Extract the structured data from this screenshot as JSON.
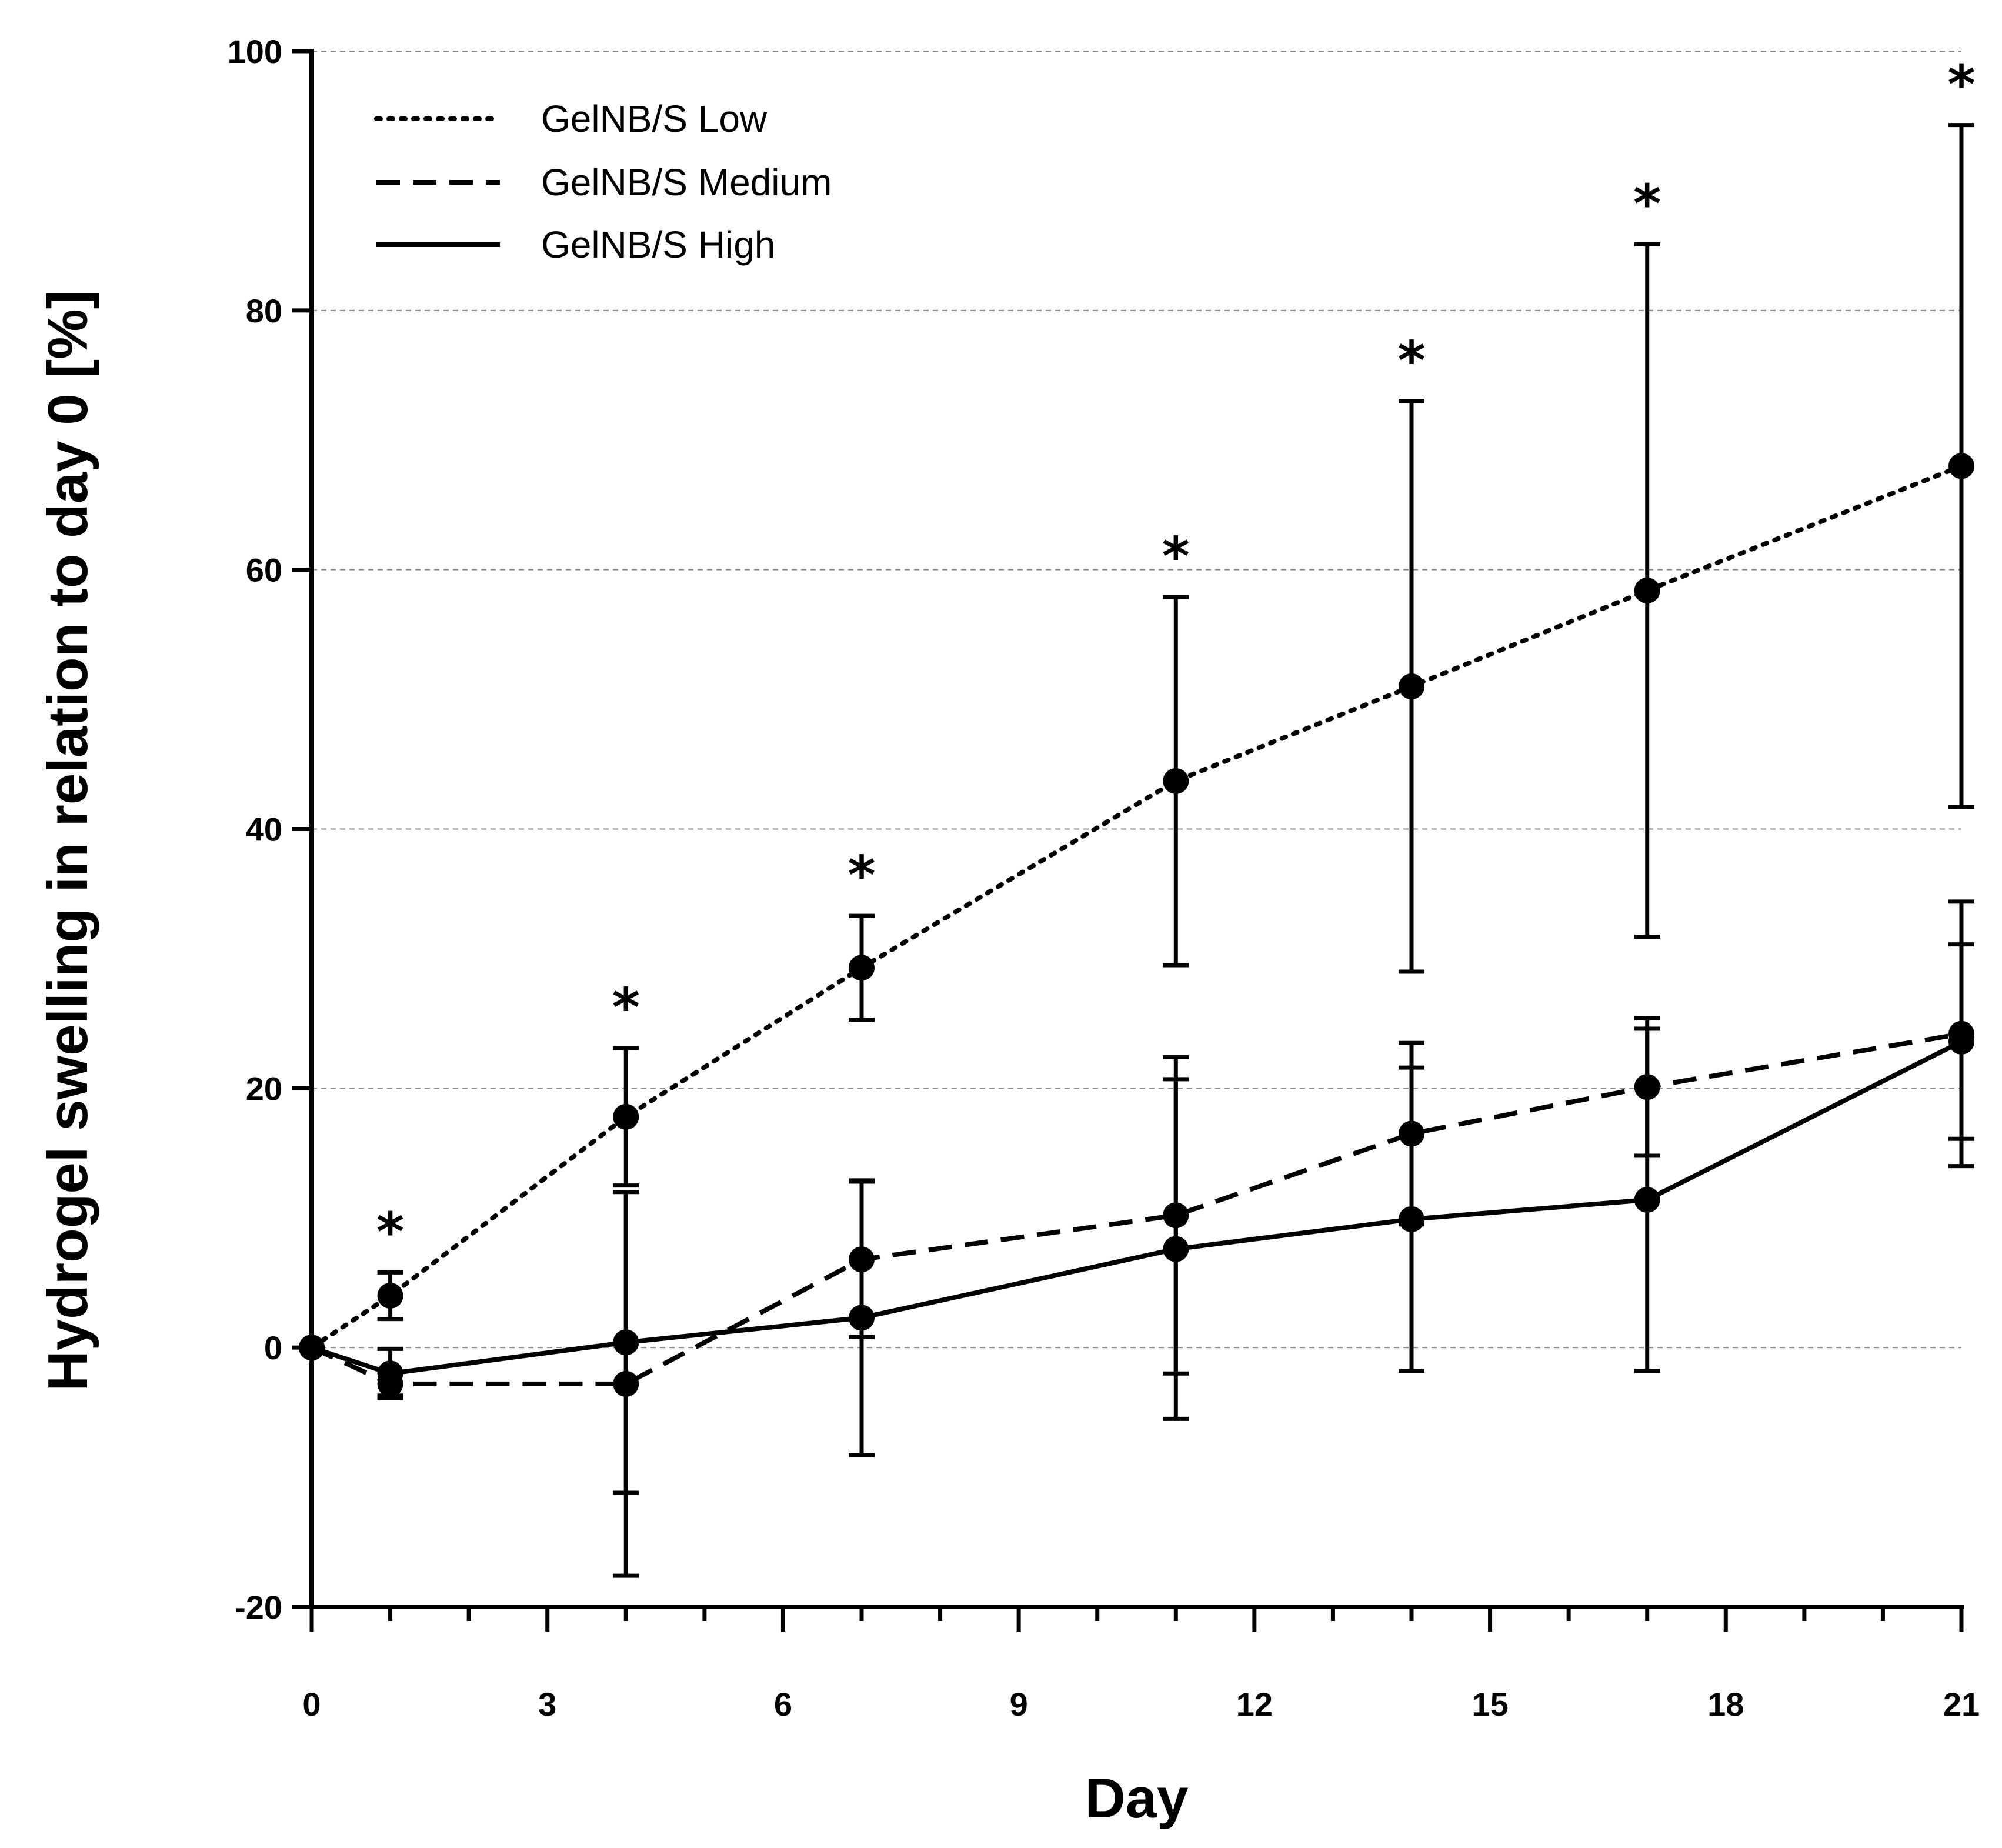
{
  "chart_data": {
    "type": "line",
    "title": "",
    "xlabel": "Day",
    "ylabel": "Hydrogel swelling in relation to day 0 [%]",
    "xlim": [
      0,
      21
    ],
    "ylim": [
      -20,
      100
    ],
    "xticks": [
      0,
      3,
      6,
      9,
      12,
      15,
      18,
      21
    ],
    "yticks": [
      -20,
      0,
      20,
      40,
      60,
      80,
      100
    ],
    "xtick_labels": [
      "0",
      "3",
      "6",
      "9",
      "12",
      "15",
      "18",
      "21"
    ],
    "ytick_labels": [
      "-20",
      "0",
      "20",
      "40",
      "60",
      "80",
      "100"
    ],
    "grid": "horizontal dashed",
    "legend_position": "top-left",
    "significance_marker": "*",
    "significance_days": [
      1,
      4,
      7,
      11,
      14,
      17,
      21
    ],
    "series": [
      {
        "name": "GelNB/S Low",
        "line_style": "dotted",
        "x": [
          0,
          1,
          4,
          7,
          11,
          14,
          17,
          21
        ],
        "y": [
          0,
          4,
          17.8,
          29.3,
          43.7,
          51,
          58.4,
          68
        ],
        "error": [
          0,
          1.8,
          5.3,
          4,
          14.2,
          22,
          26.7,
          26.3
        ]
      },
      {
        "name": "GelNB/S Medium",
        "line_style": "dashed",
        "x": [
          0,
          1,
          4,
          7,
          11,
          14,
          17,
          21
        ],
        "y": [
          0,
          -2.8,
          -2.8,
          6.8,
          10.2,
          16.5,
          20.1,
          24.2
        ],
        "error": [
          0,
          0.9,
          14.8,
          6,
          12.2,
          7,
          5.3,
          10.2
        ]
      },
      {
        "name": "GelNB/S High",
        "line_style": "solid",
        "x": [
          0,
          1,
          4,
          7,
          11,
          14,
          17,
          21
        ],
        "y": [
          0,
          -2,
          0.4,
          2.3,
          7.6,
          9.9,
          11.4,
          23.6
        ],
        "error": [
          0,
          1.9,
          11.6,
          10.6,
          13.1,
          11.7,
          13.2,
          7.5
        ]
      }
    ]
  }
}
